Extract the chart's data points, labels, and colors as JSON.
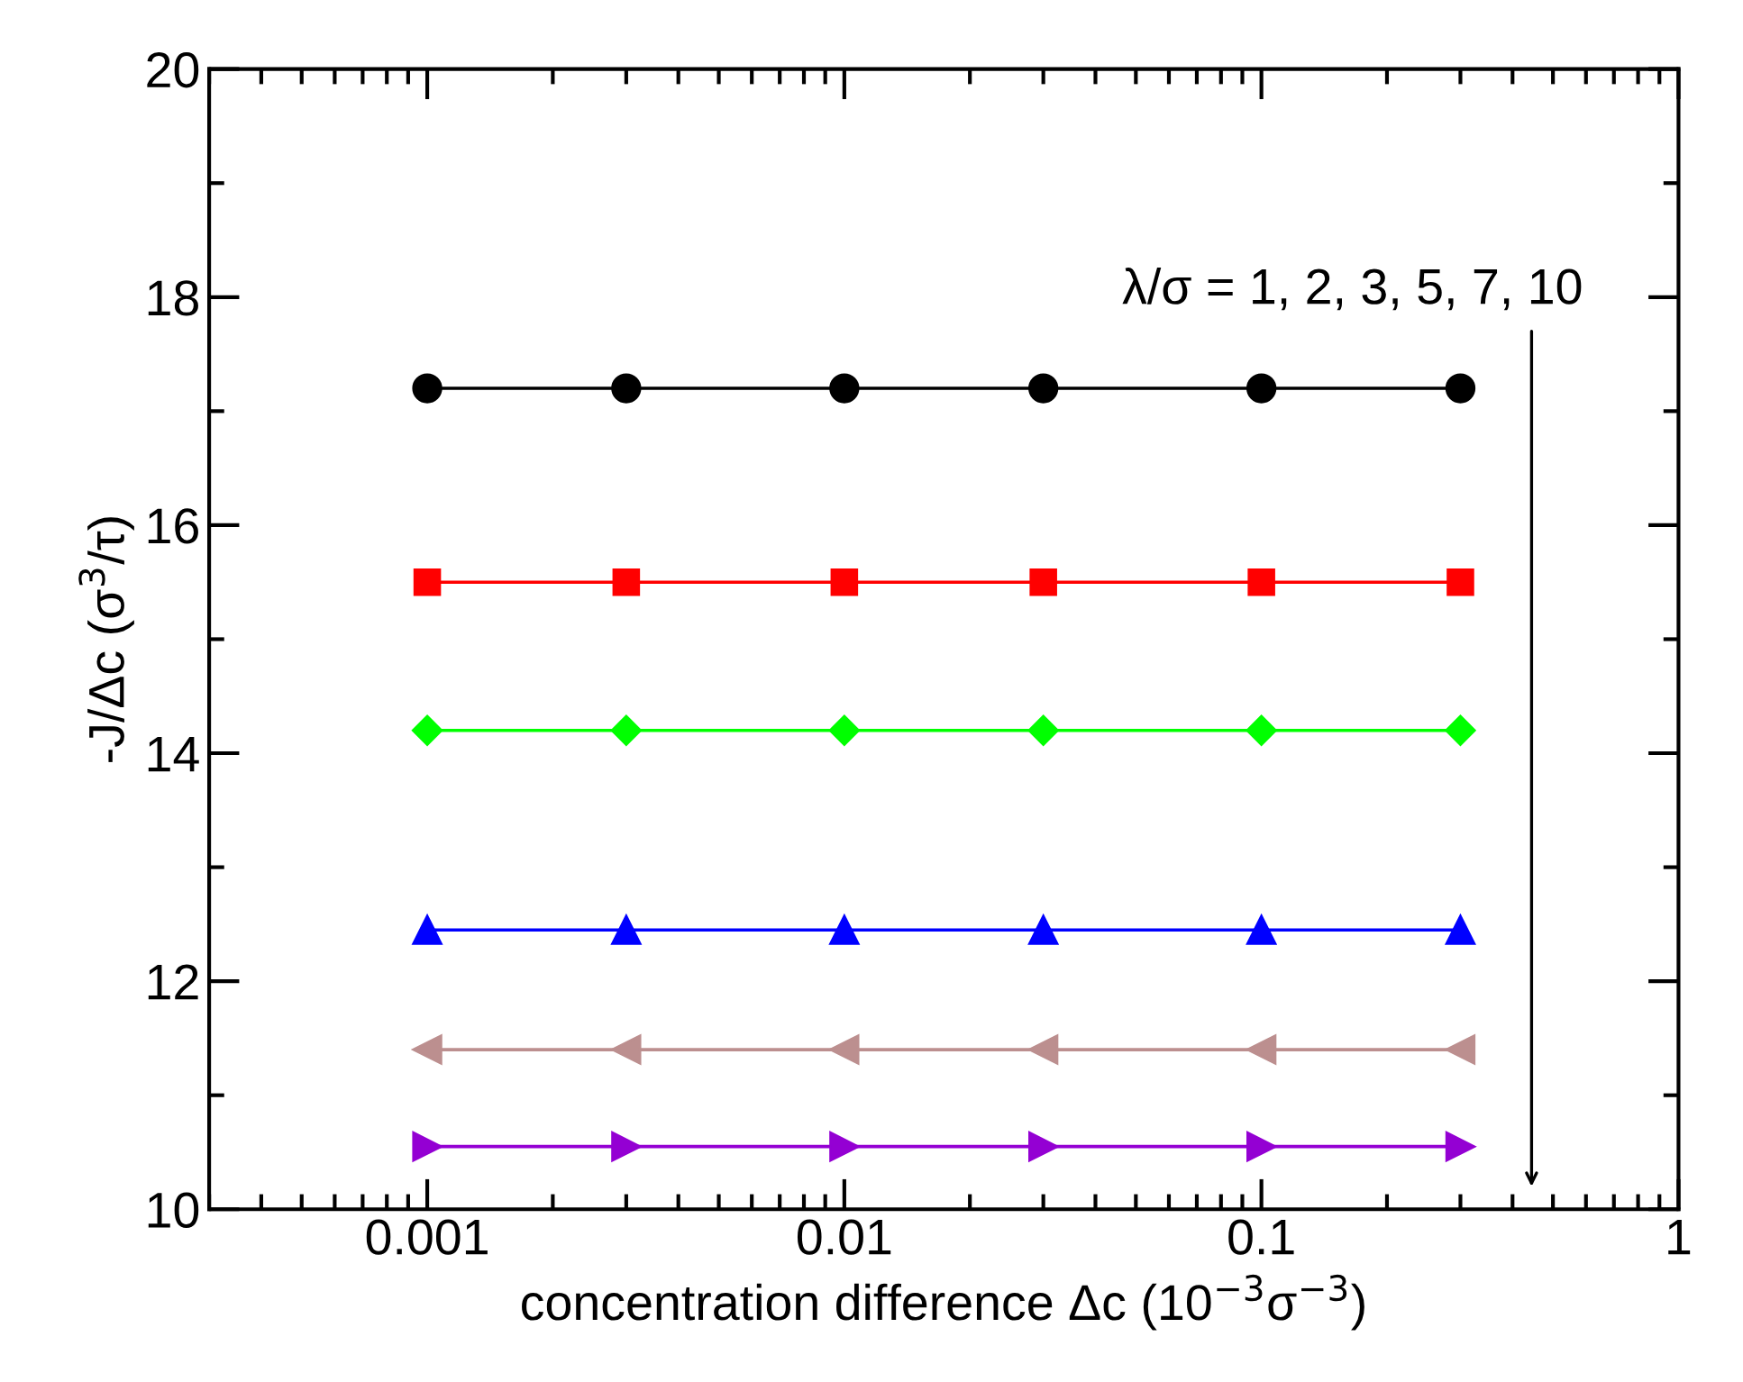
{
  "chart_data": {
    "type": "line",
    "xlabel": "concentration difference Δc (10$^{−3}$σ$^{−3}$)",
    "ylabel": "-J/Δc (σ$^{3}$/τ)",
    "x": [
      0.001,
      0.003,
      0.01,
      0.03,
      0.1,
      0.3
    ],
    "series": [
      {
        "color": "#000000",
        "marker": "circle",
        "values": [
          17.2,
          17.2,
          17.2,
          17.2,
          17.2,
          17.2
        ]
      },
      {
        "color": "#ff0000",
        "marker": "square",
        "values": [
          15.5,
          15.5,
          15.5,
          15.5,
          15.5,
          15.5
        ]
      },
      {
        "color": "#00ff00",
        "marker": "diamond",
        "values": [
          14.2,
          14.2,
          14.2,
          14.2,
          14.2,
          14.2
        ]
      },
      {
        "color": "#0000ff",
        "marker": "triangle",
        "values": [
          12.45,
          12.45,
          12.45,
          12.45,
          12.45,
          12.45
        ]
      },
      {
        "color": "#bc8f8f",
        "marker": "triangle_left",
        "values": [
          11.4,
          11.4,
          11.4,
          11.4,
          11.4,
          11.4
        ]
      },
      {
        "color": "#9400d3",
        "marker": "triangle_right",
        "values": [
          10.55,
          10.55,
          10.55,
          10.55,
          10.55,
          10.55
        ]
      }
    ],
    "annotations": [
      "λ/σ = 1, 2, 3, 5, 7, 10"
    ],
    "log": "x",
    "xlim": [
      0.0003,
      1
    ],
    "xticks": [
      0.001,
      0.01,
      0.1,
      1
    ],
    "ylim": [
      10,
      20
    ],
    "yticks": [
      10,
      12,
      14,
      16,
      18,
      20
    ],
    "grid": false,
    "legend": false,
    "line_style": "solid"
  }
}
